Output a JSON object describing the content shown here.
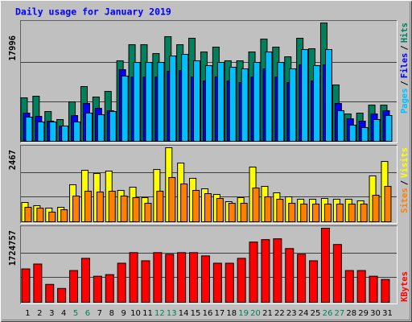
{
  "title": "Daily usage for January 2019",
  "chart_data": [
    {
      "type": "bar",
      "legend_separator": "/",
      "ylim": [
        0,
        17996
      ],
      "yticks": [
        17996
      ],
      "series": [
        {
          "name": "Hits",
          "color": "#00805c",
          "values": [
            6610,
            6854,
            4529,
            3305,
            5998,
            8323,
            6732,
            7589,
            12240,
            14688,
            14688,
            13342,
            15912,
            14688,
            15667,
            13586,
            14321,
            12240,
            12240,
            13586,
            15545,
            14321,
            12852,
            15667,
            14076,
            17996,
            8568,
            4162,
            4284,
            5508,
            5508
          ]
        },
        {
          "name": "Files",
          "color": "#0000ff",
          "values": [
            4284,
            3794,
            3060,
            2326,
            3917,
            5753,
            5018,
            4651,
            10894,
            9792,
            9792,
            9792,
            10649,
            10771,
            9792,
            9180,
            9792,
            9180,
            8935,
            9792,
            11016,
            9792,
            8935,
            11628,
            9180,
            11628,
            5753,
            3427,
            3060,
            4162,
            4651
          ]
        },
        {
          "name": "Pages",
          "color": "#00c0ff",
          "values": [
            3672,
            2938,
            2938,
            2326,
            2938,
            4284,
            4039,
            4529,
            9914,
            11995,
            11995,
            11995,
            12974,
            13219,
            12240,
            11506,
            11995,
            11261,
            11016,
            11995,
            13586,
            11995,
            11016,
            13954,
            11506,
            13954,
            4651,
            2448,
            2081,
            3305,
            3917
          ]
        }
      ]
    },
    {
      "type": "bar",
      "legend_separator": "/",
      "ylim": [
        0,
        2467
      ],
      "yticks": [
        2467
      ],
      "series": [
        {
          "name": "Visits",
          "color": "#ffff00",
          "values": [
            643,
            536,
            456,
            482,
            1233,
            1715,
            1608,
            1688,
            1045,
            1152,
            804,
            1742,
            2467,
            1956,
            1447,
            1099,
            911,
            670,
            804,
            1822,
            1179,
            965,
            831,
            750,
            750,
            777,
            750,
            750,
            697,
            1528,
            2010
          ]
        },
        {
          "name": "Sites",
          "color": "#ff8000",
          "values": [
            482,
            456,
            322,
            402,
            858,
            1018,
            992,
            1018,
            858,
            804,
            616,
            1018,
            1474,
            1260,
            1045,
            938,
            777,
            616,
            616,
            1126,
            831,
            750,
            616,
            590,
            590,
            590,
            590,
            590,
            590,
            884,
            1179
          ]
        }
      ]
    },
    {
      "type": "bar",
      "ylim": [
        0,
        1724757
      ],
      "yticks": [
        1724757
      ],
      "categories": [
        "1",
        "2",
        "3",
        "4",
        "5",
        "6",
        "7",
        "8",
        "9",
        "10",
        "11",
        "12",
        "13",
        "14",
        "15",
        "16",
        "17",
        "18",
        "19",
        "20",
        "21",
        "22",
        "23",
        "24",
        "25",
        "26",
        "27",
        "28",
        "29",
        "30",
        "31"
      ],
      "category_colors": [
        "#000000",
        "#000000",
        "#000000",
        "#000000",
        "#00805c",
        "#00805c",
        "#000000",
        "#000000",
        "#000000",
        "#000000",
        "#000000",
        "#00805c",
        "#00805c",
        "#000000",
        "#000000",
        "#000000",
        "#000000",
        "#000000",
        "#00805c",
        "#00805c",
        "#000000",
        "#000000",
        "#000000",
        "#000000",
        "#000000",
        "#00805c",
        "#00805c",
        "#000000",
        "#000000",
        "#000000",
        "#000000"
      ],
      "series": [
        {
          "name": "KBytes",
          "color": "#ff0000",
          "values": [
            777081,
            890791,
            416966,
            322201,
            739175,
            1023462,
            606496,
            644402,
            909744,
            1156133,
            966603,
            1156133,
            1118227,
            1156133,
            1156133,
            1080321,
            909744,
            909744,
            1023462,
            1402522,
            1459382,
            1478335,
            1250898,
            1118227,
            966603,
            1724757,
            1345663,
            739175,
            739175,
            606496,
            530684
          ]
        }
      ]
    }
  ]
}
